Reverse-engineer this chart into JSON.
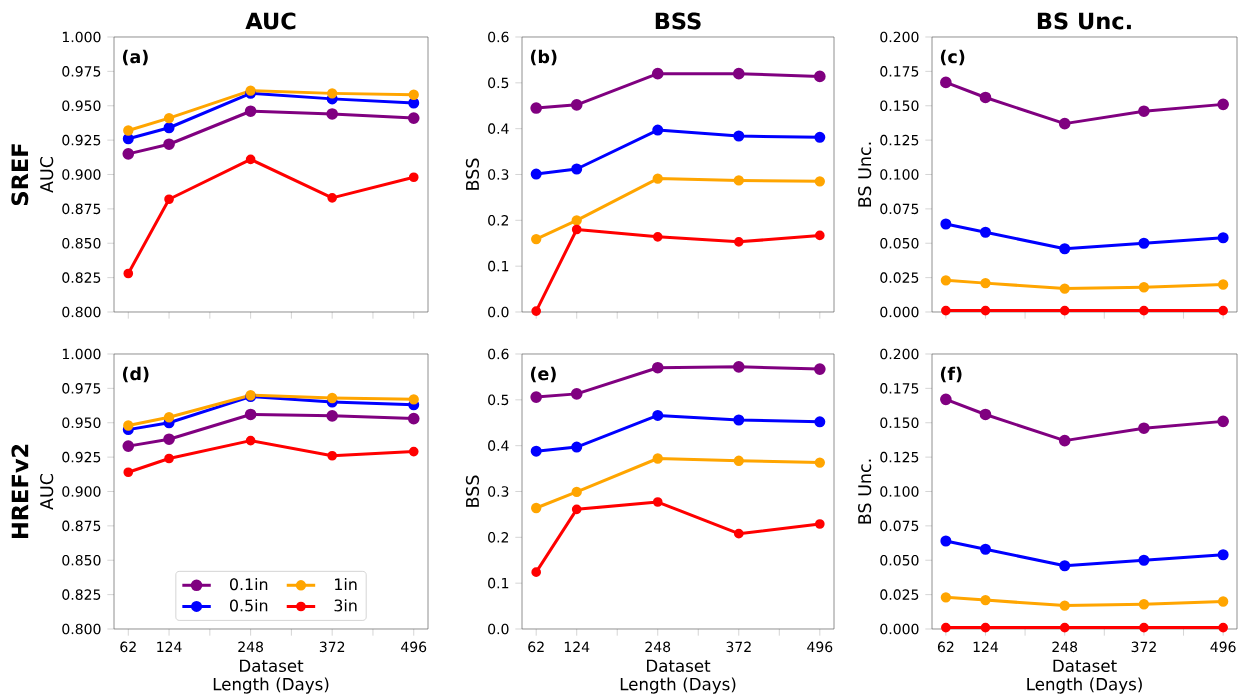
{
  "chart_data": [
    {
      "type": "line",
      "title": "AUC",
      "ylabel": "AUC",
      "annotations": [
        "(a)",
        "SREF"
      ],
      "x": [
        62,
        124,
        248,
        372,
        496
      ],
      "xlim": [
        40.3,
        517.7
      ],
      "xticks": [
        62,
        124,
        {
          "value": 186,
          "label": null
        },
        248,
        {
          "value": 310,
          "label": null
        },
        372,
        {
          "value": 434,
          "label": null
        },
        496
      ],
      "ylim": [
        0.8,
        1.0
      ],
      "yticks": [
        {
          "value": 0.8,
          "label": "0.800"
        },
        {
          "value": 0.825,
          "label": "0.825"
        },
        {
          "value": 0.85,
          "label": "0.850"
        },
        {
          "value": 0.875,
          "label": "0.875"
        },
        {
          "value": 0.9,
          "label": "0.900"
        },
        {
          "value": 0.925,
          "label": "0.925"
        },
        {
          "value": 0.95,
          "label": "0.950"
        },
        {
          "value": 0.975,
          "label": "0.975"
        },
        {
          "value": 1.0,
          "label": "1.000"
        }
      ],
      "tick_labels": "y",
      "marker": "circle",
      "series": [
        {
          "color": "#800080",
          "values": [
            0.915,
            0.922,
            0.946,
            0.944,
            0.941
          ]
        },
        {
          "color": "#0000ff",
          "values": [
            0.926,
            0.934,
            0.959,
            0.955,
            0.952
          ]
        },
        {
          "color": "#ffa500",
          "values": [
            0.932,
            0.941,
            0.961,
            0.959,
            0.958
          ]
        },
        {
          "color": "#ff0000",
          "values": [
            0.828,
            0.882,
            0.911,
            0.883,
            0.898
          ]
        }
      ]
    },
    {
      "type": "line",
      "title": "BSS",
      "ylabel": "BSS",
      "annotations": [
        "(b)"
      ],
      "x": [
        62,
        124,
        248,
        372,
        496
      ],
      "xlim": [
        40.3,
        517.7
      ],
      "xticks": [
        62,
        124,
        {
          "value": 186,
          "label": null
        },
        248,
        {
          "value": 310,
          "label": null
        },
        372,
        {
          "value": 434,
          "label": null
        },
        496
      ],
      "ylim": [
        0.0,
        0.6
      ],
      "yticks": [
        {
          "value": 0.0,
          "label": "0.0"
        },
        0.1,
        0.2,
        0.3,
        0.4,
        0.5,
        0.6
      ],
      "tick_labels": "y",
      "marker": "circle",
      "series": [
        {
          "color": "#800080",
          "values": [
            0.445,
            0.452,
            0.52,
            0.52,
            0.514
          ]
        },
        {
          "color": "#0000ff",
          "values": [
            0.301,
            0.312,
            0.397,
            0.384,
            0.381
          ]
        },
        {
          "color": "#ffa500",
          "values": [
            0.159,
            0.2,
            0.291,
            0.287,
            0.285
          ]
        },
        {
          "color": "#ff0000",
          "values": [
            0.002,
            0.18,
            0.164,
            0.153,
            0.167
          ]
        }
      ]
    },
    {
      "type": "line",
      "title": "BS Unc.",
      "ylabel": "BS Unc.",
      "annotations": [
        "(c)"
      ],
      "x": [
        62,
        124,
        248,
        372,
        496
      ],
      "xlim": [
        40.3,
        517.7
      ],
      "xticks": [
        62,
        124,
        {
          "value": 186,
          "label": null
        },
        248,
        {
          "value": 310,
          "label": null
        },
        372,
        {
          "value": 434,
          "label": null
        },
        496
      ],
      "ylim": [
        0.0,
        0.2
      ],
      "yticks": [
        {
          "value": 0.0,
          "label": "0.000"
        },
        {
          "value": 0.025,
          "label": "0.025"
        },
        {
          "value": 0.05,
          "label": "0.050"
        },
        {
          "value": 0.075,
          "label": "0.075"
        },
        {
          "value": 0.1,
          "label": "0.100"
        },
        {
          "value": 0.125,
          "label": "0.125"
        },
        {
          "value": 0.15,
          "label": "0.150"
        },
        {
          "value": 0.175,
          "label": "0.175"
        },
        {
          "value": 0.2,
          "label": "0.200"
        }
      ],
      "tick_labels": "y",
      "marker": "circle",
      "series": [
        {
          "color": "#800080",
          "values": [
            0.167,
            0.156,
            0.137,
            0.146,
            0.151
          ]
        },
        {
          "color": "#0000ff",
          "values": [
            0.064,
            0.058,
            0.046,
            0.05,
            0.054
          ]
        },
        {
          "color": "#ffa500",
          "values": [
            0.023,
            0.021,
            0.017,
            0.018,
            0.02
          ]
        },
        {
          "color": "#ff0000",
          "values": [
            0.001,
            0.001,
            0.001,
            0.001,
            0.001
          ]
        }
      ]
    },
    {
      "type": "line",
      "xlabel": "Dataset Length (Days)",
      "ylabel": "AUC",
      "annotations": [
        "(d)",
        "HREFv2"
      ],
      "x": [
        62,
        124,
        248,
        372,
        496
      ],
      "xlim": [
        40.3,
        517.7
      ],
      "xticks": [
        62,
        124,
        {
          "value": 186,
          "label": null
        },
        248,
        {
          "value": 310,
          "label": null
        },
        372,
        {
          "value": 434,
          "label": null
        },
        496
      ],
      "ylim": [
        0.8,
        1.0
      ],
      "yticks": [
        {
          "value": 0.8,
          "label": "0.800"
        },
        {
          "value": 0.825,
          "label": "0.825"
        },
        {
          "value": 0.85,
          "label": "0.850"
        },
        {
          "value": 0.875,
          "label": "0.875"
        },
        {
          "value": 0.9,
          "label": "0.900"
        },
        {
          "value": 0.925,
          "label": "0.925"
        },
        {
          "value": 0.95,
          "label": "0.950"
        },
        {
          "value": 0.975,
          "label": "0.975"
        },
        {
          "value": 1.0,
          "label": "1.000"
        }
      ],
      "legend": "bottom",
      "marker": "circle",
      "series": [
        {
          "name": "0.1in",
          "color": "#800080",
          "values": [
            0.933,
            0.938,
            0.956,
            0.955,
            0.953
          ]
        },
        {
          "name": "0.5in",
          "color": "#0000ff",
          "values": [
            0.945,
            0.95,
            0.969,
            0.965,
            0.963
          ]
        },
        {
          "name": "1in",
          "color": "#ffa500",
          "values": [
            0.948,
            0.954,
            0.97,
            0.968,
            0.967
          ]
        },
        {
          "name": "3in",
          "color": "#ff0000",
          "values": [
            0.914,
            0.924,
            0.937,
            0.926,
            0.929
          ]
        }
      ]
    },
    {
      "type": "line",
      "xlabel": "Dataset Length (Days)",
      "ylabel": "BSS",
      "annotations": [
        "(e)"
      ],
      "x": [
        62,
        124,
        248,
        372,
        496
      ],
      "xlim": [
        40.3,
        517.7
      ],
      "xticks": [
        62,
        124,
        {
          "value": 186,
          "label": null
        },
        248,
        {
          "value": 310,
          "label": null
        },
        372,
        {
          "value": 434,
          "label": null
        },
        496
      ],
      "ylim": [
        0.0,
        0.6
      ],
      "yticks": [
        {
          "value": 0.0,
          "label": "0.0"
        },
        0.1,
        0.2,
        0.3,
        0.4,
        0.5,
        0.6
      ],
      "marker": "circle",
      "series": [
        {
          "color": "#800080",
          "values": [
            0.506,
            0.513,
            0.57,
            0.572,
            0.567
          ]
        },
        {
          "color": "#0000ff",
          "values": [
            0.388,
            0.397,
            0.466,
            0.456,
            0.452
          ]
        },
        {
          "color": "#ffa500",
          "values": [
            0.264,
            0.299,
            0.372,
            0.367,
            0.363
          ]
        },
        {
          "color": "#ff0000",
          "values": [
            0.124,
            0.261,
            0.277,
            0.208,
            0.229
          ]
        }
      ]
    },
    {
      "type": "line",
      "xlabel": "Dataset Length (Days)",
      "ylabel": "BS Unc.",
      "annotations": [
        "(f)"
      ],
      "x": [
        62,
        124,
        248,
        372,
        496
      ],
      "xlim": [
        40.3,
        517.7
      ],
      "xticks": [
        62,
        124,
        {
          "value": 186,
          "label": null
        },
        248,
        {
          "value": 310,
          "label": null
        },
        372,
        {
          "value": 434,
          "label": null
        },
        496
      ],
      "ylim": [
        0.0,
        0.2
      ],
      "yticks": [
        {
          "value": 0.0,
          "label": "0.000"
        },
        {
          "value": 0.025,
          "label": "0.025"
        },
        {
          "value": 0.05,
          "label": "0.050"
        },
        {
          "value": 0.075,
          "label": "0.075"
        },
        {
          "value": 0.1,
          "label": "0.100"
        },
        {
          "value": 0.125,
          "label": "0.125"
        },
        {
          "value": 0.15,
          "label": "0.150"
        },
        {
          "value": 0.175,
          "label": "0.175"
        },
        {
          "value": 0.2,
          "label": "0.200"
        }
      ],
      "marker": "circle",
      "series": [
        {
          "color": "#800080",
          "values": [
            0.167,
            0.156,
            0.137,
            0.146,
            0.151
          ]
        },
        {
          "color": "#0000ff",
          "values": [
            0.064,
            0.058,
            0.046,
            0.05,
            0.054
          ]
        },
        {
          "color": "#ffa500",
          "values": [
            0.023,
            0.021,
            0.017,
            0.018,
            0.02
          ]
        },
        {
          "color": "#ff0000",
          "values": [
            0.001,
            0.001,
            0.001,
            0.001,
            0.001
          ]
        }
      ]
    }
  ]
}
